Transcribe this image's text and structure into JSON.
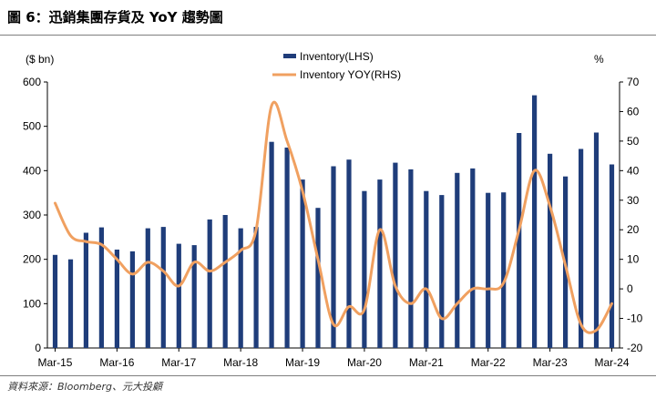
{
  "title": "圖 6：迅銷集團存貨及 YoY 趨勢圖",
  "source": "資料來源：Bloomberg、元大投顧",
  "colors": {
    "bar": "#1f3d7a",
    "line": "#f0a060",
    "axis": "#000000"
  },
  "chart_data": {
    "type": "bar",
    "ylabel_left": "($ bn)",
    "ylabel_right": "%",
    "ylim_left": [
      0,
      600
    ],
    "yticks_left": [
      0,
      100,
      200,
      300,
      400,
      500,
      600
    ],
    "ylim_right": [
      -20,
      70
    ],
    "yticks_right": [
      -20,
      -10,
      0,
      10,
      20,
      30,
      40,
      50,
      60,
      70
    ],
    "xtick_labels": [
      "Mar-15",
      "Mar-16",
      "Mar-17",
      "Mar-18",
      "Mar-19",
      "Mar-20",
      "Mar-21",
      "Mar-22",
      "Mar-23",
      "Mar-24"
    ],
    "legend_position": "top-center",
    "grid": false,
    "series": [
      {
        "name": "Inventory(LHS)",
        "type": "bar",
        "axis": "left",
        "values": [
          210,
          200,
          260,
          272,
          222,
          218,
          270,
          273,
          235,
          232,
          290,
          300,
          270,
          273,
          465,
          452,
          380,
          316,
          410,
          425,
          354,
          380,
          418,
          403,
          354,
          345,
          395,
          405,
          350,
          351,
          485,
          570,
          438,
          387,
          449,
          486,
          414
        ]
      },
      {
        "name": "Inventory YOY(RHS)",
        "type": "line",
        "axis": "right",
        "values": [
          29,
          18,
          16,
          15,
          10,
          5,
          9,
          6,
          1,
          9,
          6,
          9,
          13,
          20,
          62,
          50,
          33,
          10,
          -12,
          -6,
          -7,
          20,
          1,
          -5,
          0,
          -10,
          -5,
          0,
          0,
          2,
          20,
          40,
          28,
          8,
          -12,
          -14,
          -5
        ]
      }
    ]
  }
}
